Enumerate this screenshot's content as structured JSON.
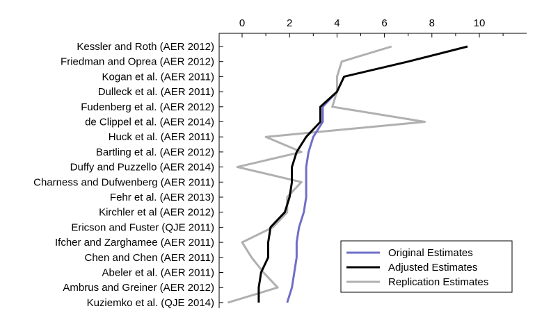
{
  "chart_data": {
    "type": "line",
    "orientation": "horizontal-categories",
    "x_axis_position": "top",
    "xlim": [
      -1,
      12
    ],
    "xticks": [
      0,
      2,
      4,
      6,
      8,
      10
    ],
    "xtick_labels": [
      "0",
      "2",
      "4",
      "6",
      "8",
      "10"
    ],
    "categories": [
      "Kessler and Roth (AER 2012)",
      "Friedman and Oprea (AER 2012)",
      "Kogan et al. (AER 2011)",
      "Dulleck et al. (AER 2011)",
      "Fudenberg et al. (AER 2012)",
      "de Clippel et al. (AER 2014)",
      "Huck et al. (AER 2011)",
      "Bartling et al. (AER 2012)",
      "Duffy and Puzzello (AER 2014)",
      "Charness and Dufwenberg (AER 2011)",
      "Fehr et al. (AER 2013)",
      "Kirchler et al (AER 2012)",
      "Ericson and Fuster (QJE 2011)",
      "Ifcher and Zarghamee (AER 2011)",
      "Chen and Chen (AER 2011)",
      "Abeler et al. (AER 2011)",
      "Ambrus and Greiner (AER 2012)",
      "Kuziemko et al. (QJE 2014)"
    ],
    "series": [
      {
        "name": "Original Estimates",
        "color": "#6f6fc8",
        "values": [
          null,
          null,
          null,
          4.0,
          3.4,
          3.4,
          3.0,
          2.8,
          2.7,
          2.7,
          2.7,
          2.6,
          2.4,
          2.3,
          2.3,
          2.2,
          2.1,
          1.9
        ]
      },
      {
        "name": "Adjusted Estimates",
        "color": "#000000",
        "values": [
          9.5,
          7.0,
          4.3,
          4.0,
          3.3,
          3.3,
          2.7,
          2.3,
          2.1,
          2.1,
          2.0,
          1.8,
          1.2,
          1.1,
          1.1,
          0.8,
          0.7,
          0.7
        ]
      },
      {
        "name": "Replication Estimates",
        "color": "#b0b0b0",
        "values": [
          6.3,
          4.2,
          4.0,
          4.0,
          3.8,
          7.7,
          1.0,
          2.5,
          -0.2,
          2.5,
          1.9,
          1.9,
          1.3,
          0.0,
          0.4,
          0.9,
          1.5,
          -0.6
        ]
      }
    ],
    "legend_position": "bottom-right"
  }
}
